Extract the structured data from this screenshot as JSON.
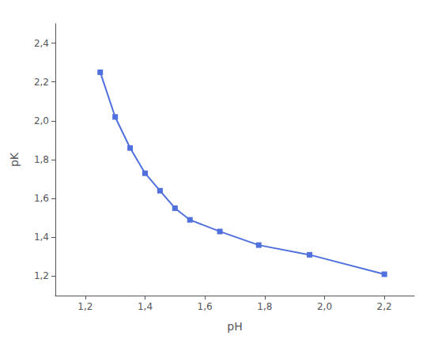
{
  "chart_data": {
    "type": "line",
    "x": [
      1.25,
      1.3,
      1.35,
      1.4,
      1.45,
      1.5,
      1.55,
      1.65,
      1.78,
      1.95,
      2.2
    ],
    "values": [
      2.25,
      2.02,
      1.86,
      1.73,
      1.64,
      1.55,
      1.49,
      1.43,
      1.36,
      1.31,
      1.21
    ],
    "xlabel": "pH",
    "ylabel": "pK",
    "xlim": [
      1.1,
      2.3
    ],
    "ylim": [
      1.1,
      2.5
    ],
    "xticks": [
      {
        "value": 1.2,
        "label": "1,2"
      },
      {
        "value": 1.4,
        "label": "1,4"
      },
      {
        "value": 1.6,
        "label": "1,6"
      },
      {
        "value": 1.8,
        "label": "1,8"
      },
      {
        "value": 2.0,
        "label": "2,0"
      },
      {
        "value": 2.2,
        "label": "2,2"
      }
    ],
    "yticks": [
      {
        "value": 1.2,
        "label": "1,2"
      },
      {
        "value": 1.4,
        "label": "1,4"
      },
      {
        "value": 1.6,
        "label": "1,6"
      },
      {
        "value": 1.8,
        "label": "1,8"
      },
      {
        "value": 2.0,
        "label": "2,0"
      },
      {
        "value": 2.2,
        "label": "2,2"
      },
      {
        "value": 2.4,
        "label": "2,4"
      }
    ],
    "marker": "square",
    "grid": false
  }
}
